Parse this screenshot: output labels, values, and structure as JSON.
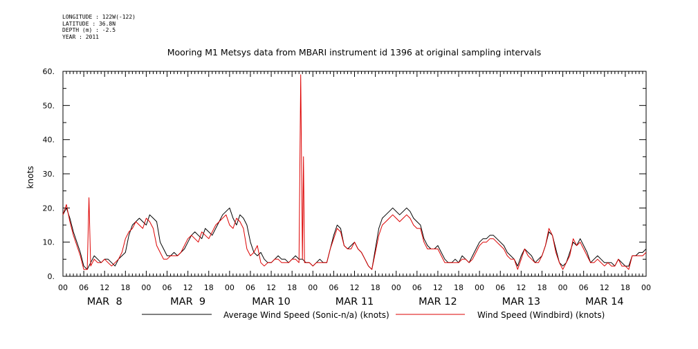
{
  "metadata": [
    "LONGITUDE : 122W(-122)",
    "LATITUDE : 36.8N",
    "DEPTH (m) : -2.5",
    "YEAR : 2011"
  ],
  "chart_data": {
    "type": "line",
    "title": "Mooring M1 Metsys data from MBARI instrument id 1396 at original sampling intervals",
    "ylabel": "knots",
    "xlabel": "",
    "ylim": [
      0,
      60
    ],
    "yticks": [
      0,
      10,
      20,
      30,
      40,
      50,
      60
    ],
    "ytick_labels": [
      "0.",
      "10.",
      "20.",
      "30.",
      "40.",
      "50.",
      "60."
    ],
    "xlim_hours": [
      0,
      168
    ],
    "hour_ticks": [
      "00",
      "06",
      "12",
      "18",
      "00",
      "06",
      "12",
      "18",
      "00",
      "06",
      "12",
      "18",
      "00",
      "06",
      "12",
      "18",
      "00",
      "06",
      "12",
      "18",
      "00",
      "06",
      "12",
      "18",
      "00",
      "06",
      "12",
      "18",
      "00"
    ],
    "day_labels": [
      "MAR  8",
      "MAR  9",
      "MAR 10",
      "MAR 11",
      "MAR 12",
      "MAR 13",
      "MAR 14"
    ],
    "grid": false,
    "legend_position": "bottom",
    "series": [
      {
        "name": "Average Wind Speed (Sonic-n/a) (knots)",
        "color": "#000000",
        "x": [
          0,
          1,
          2,
          3,
          4,
          5,
          6,
          7,
          8,
          9,
          10,
          11,
          12,
          13,
          14,
          15,
          16,
          17,
          18,
          19,
          20,
          21,
          22,
          23,
          24,
          25,
          26,
          27,
          28,
          29,
          30,
          31,
          32,
          33,
          34,
          35,
          36,
          37,
          38,
          39,
          40,
          41,
          42,
          43,
          44,
          45,
          46,
          47,
          48,
          49,
          50,
          51,
          52,
          53,
          54,
          55,
          56,
          57,
          58,
          59,
          60,
          61,
          62,
          63,
          64,
          65,
          66,
          67,
          68,
          69,
          70,
          71,
          72,
          73,
          74,
          75,
          76,
          77,
          78,
          79,
          80,
          81,
          82,
          83,
          84,
          85,
          86,
          87,
          88,
          89,
          90,
          91,
          92,
          93,
          94,
          95,
          96,
          97,
          98,
          99,
          100,
          101,
          102,
          103,
          104,
          105,
          106,
          107,
          108,
          109,
          110,
          111,
          112,
          113,
          114,
          115,
          116,
          117,
          118,
          119,
          120,
          121,
          122,
          123,
          124,
          125,
          126,
          127,
          128,
          129,
          130,
          131,
          132,
          133,
          134,
          135,
          136,
          137,
          138,
          139,
          140,
          141,
          142,
          143,
          144,
          145,
          146,
          147,
          148,
          149,
          150,
          151,
          152,
          153,
          154,
          155,
          156,
          157,
          158,
          159,
          160,
          161,
          162,
          163,
          164,
          165,
          166,
          167,
          168
        ],
        "values": [
          18,
          20,
          17,
          13,
          10,
          7,
          3,
          2,
          4,
          6,
          5,
          4,
          5,
          5,
          4,
          3,
          5,
          6,
          7,
          12,
          15,
          16,
          17,
          16,
          15,
          18,
          17,
          16,
          10,
          8,
          6,
          6,
          7,
          6,
          7,
          8,
          10,
          12,
          13,
          12,
          11,
          14,
          13,
          12,
          14,
          16,
          18,
          19,
          20,
          17,
          15,
          18,
          17,
          15,
          10,
          7,
          6,
          7,
          5,
          4,
          4,
          5,
          6,
          5,
          5,
          4,
          5,
          6,
          5,
          5,
          4,
          4,
          3,
          4,
          5,
          4,
          4,
          8,
          12,
          15,
          14,
          9,
          8,
          9,
          10,
          8,
          7,
          5,
          3,
          2,
          8,
          14,
          17,
          18,
          19,
          20,
          19,
          18,
          19,
          20,
          19,
          17,
          16,
          15,
          11,
          9,
          8,
          8,
          9,
          7,
          5,
          4,
          4,
          5,
          4,
          6,
          5,
          4,
          6,
          8,
          10,
          11,
          11,
          12,
          12,
          11,
          10,
          9,
          7,
          6,
          5,
          3,
          6,
          8,
          7,
          6,
          4,
          5,
          6,
          9,
          13,
          12,
          8,
          4,
          3,
          4,
          7,
          10,
          9,
          11,
          9,
          7,
          4,
          5,
          6,
          5,
          4,
          4,
          4,
          3,
          5,
          4,
          3,
          3,
          6,
          6,
          7,
          7,
          8
        ]
      },
      {
        "name": "Wind Speed (Windbird) (knots)",
        "color": "#dd0000",
        "x": [
          0,
          1,
          2,
          3,
          4,
          5,
          6,
          7,
          7.5,
          8,
          9,
          10,
          11,
          12,
          13,
          14,
          15,
          16,
          17,
          18,
          19,
          20,
          21,
          22,
          23,
          24,
          25,
          26,
          27,
          28,
          29,
          30,
          31,
          32,
          33,
          34,
          35,
          36,
          37,
          38,
          39,
          40,
          41,
          42,
          43,
          44,
          45,
          46,
          47,
          48,
          49,
          50,
          51,
          52,
          53,
          54,
          55,
          56,
          57,
          58,
          59,
          60,
          61,
          62,
          63,
          64,
          65,
          66,
          67,
          68,
          68.5,
          69,
          69.3,
          69.6,
          70,
          71,
          72,
          73,
          74,
          75,
          76,
          77,
          78,
          79,
          80,
          81,
          82,
          83,
          84,
          85,
          86,
          87,
          88,
          89,
          90,
          91,
          92,
          93,
          94,
          95,
          96,
          97,
          98,
          99,
          100,
          101,
          102,
          103,
          104,
          105,
          106,
          107,
          108,
          109,
          110,
          111,
          112,
          113,
          114,
          115,
          116,
          117,
          118,
          119,
          120,
          121,
          122,
          123,
          124,
          125,
          126,
          127,
          128,
          129,
          130,
          131,
          132,
          133,
          134,
          135,
          136,
          137,
          138,
          139,
          140,
          141,
          142,
          143,
          144,
          145,
          146,
          147,
          148,
          149,
          150,
          151,
          152,
          153,
          154,
          155,
          156,
          157,
          158,
          159,
          160,
          161,
          162,
          163,
          164,
          165,
          166,
          167,
          168
        ],
        "values": [
          18,
          21,
          16,
          12,
          9,
          6,
          2,
          2,
          23,
          3,
          5,
          4,
          4,
          5,
          4,
          3,
          4,
          5,
          7,
          11,
          13,
          14,
          16,
          15,
          14,
          17,
          16,
          14,
          9,
          7,
          5,
          5,
          6,
          6,
          6,
          7,
          9,
          11,
          12,
          11,
          10,
          13,
          12,
          11,
          13,
          15,
          16,
          17,
          18,
          15,
          14,
          17,
          16,
          14,
          8,
          6,
          7,
          9,
          4,
          3,
          4,
          4,
          5,
          5,
          4,
          4,
          4,
          5,
          5,
          4,
          59,
          5,
          35,
          4,
          4,
          4,
          3,
          4,
          4,
          4,
          4,
          8,
          11,
          14,
          13,
          9,
          8,
          8,
          10,
          8,
          7,
          5,
          3,
          2,
          7,
          12,
          15,
          16,
          17,
          18,
          17,
          16,
          17,
          18,
          17,
          15,
          14,
          14,
          10,
          8,
          8,
          8,
          8,
          6,
          4,
          4,
          4,
          4,
          4,
          5,
          5,
          4,
          5,
          7,
          9,
          10,
          10,
          11,
          11,
          10,
          9,
          8,
          6,
          5,
          5,
          2,
          5,
          8,
          6,
          5,
          4,
          4,
          6,
          9,
          14,
          12,
          7,
          4,
          2,
          4,
          6,
          11,
          9,
          10,
          8,
          6,
          4,
          4,
          5,
          4,
          3,
          4,
          3,
          3,
          5,
          3,
          3,
          2,
          6,
          6,
          6,
          6,
          7
        ]
      }
    ]
  }
}
